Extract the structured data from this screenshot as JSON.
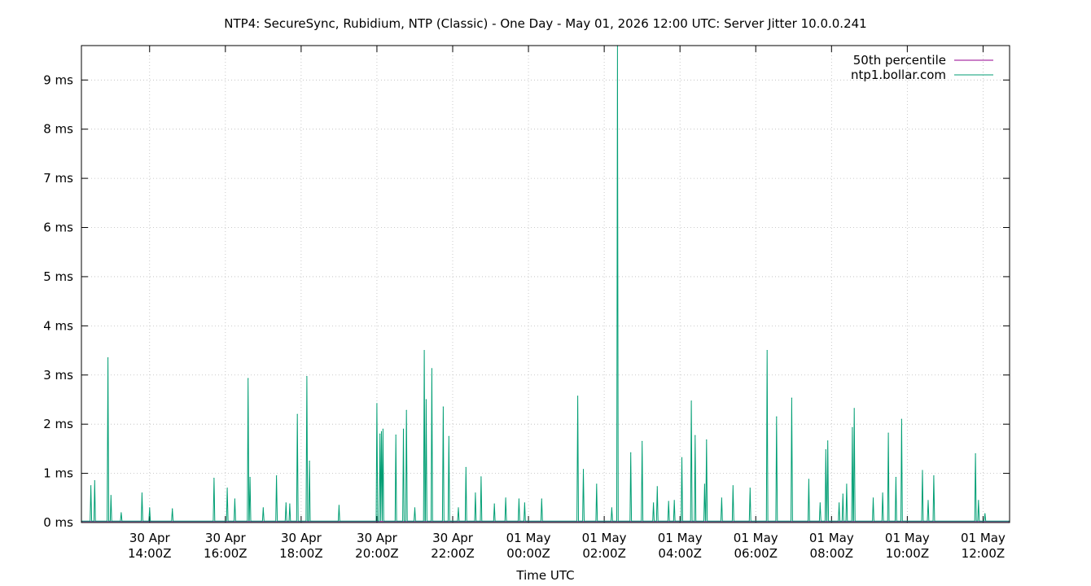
{
  "chart_data": {
    "type": "line",
    "title": "NTP4: SecureSync, Rubidium, NTP (Classic) - One Day - May 01, 2026 12:00 UTC: Server Jitter 10.0.0.241",
    "xlabel": "Time UTC",
    "ylabel": "",
    "x_unit": "hours since 30 Apr 12:00Z",
    "xlim": [
      0,
      24.5
    ],
    "ylim": [
      0,
      9.7
    ],
    "y_tick_values": [
      0,
      1,
      2,
      3,
      4,
      5,
      6,
      7,
      8,
      9
    ],
    "y_tick_labels": [
      "0 ms",
      "1 ms",
      "2 ms",
      "3 ms",
      "4 ms",
      "5 ms",
      "6 ms",
      "7 ms",
      "8 ms",
      "9 ms"
    ],
    "x_ticks": [
      {
        "x": 1.8,
        "line1": "30 Apr",
        "line2": "14:00Z"
      },
      {
        "x": 3.8,
        "line1": "30 Apr",
        "line2": "16:00Z"
      },
      {
        "x": 5.8,
        "line1": "30 Apr",
        "line2": "18:00Z"
      },
      {
        "x": 7.8,
        "line1": "30 Apr",
        "line2": "20:00Z"
      },
      {
        "x": 9.8,
        "line1": "30 Apr",
        "line2": "22:00Z"
      },
      {
        "x": 11.8,
        "line1": "01 May",
        "line2": "00:00Z"
      },
      {
        "x": 13.8,
        "line1": "01 May",
        "line2": "02:00Z"
      },
      {
        "x": 15.8,
        "line1": "01 May",
        "line2": "04:00Z"
      },
      {
        "x": 17.8,
        "line1": "01 May",
        "line2": "06:00Z"
      },
      {
        "x": 19.8,
        "line1": "01 May",
        "line2": "08:00Z"
      },
      {
        "x": 21.8,
        "line1": "01 May",
        "line2": "10:00Z"
      },
      {
        "x": 23.8,
        "line1": "01 May",
        "line2": "12:00Z"
      }
    ],
    "grid": true,
    "legend_position": "top-right",
    "series": [
      {
        "name": "50th percentile",
        "color": "#94008f",
        "values": [
          [
            0,
            0.02
          ],
          [
            24.5,
            0.02
          ]
        ]
      },
      {
        "name": "ntp1.bollar.com",
        "color": "#009e73",
        "baseline": 0.03,
        "spikes": [
          [
            0.25,
            0.75
          ],
          [
            0.35,
            0.85
          ],
          [
            0.7,
            3.35
          ],
          [
            0.78,
            0.55
          ],
          [
            1.05,
            0.2
          ],
          [
            1.6,
            0.6
          ],
          [
            1.8,
            0.3
          ],
          [
            2.4,
            0.28
          ],
          [
            3.5,
            0.9
          ],
          [
            3.85,
            0.7
          ],
          [
            4.05,
            0.48
          ],
          [
            4.4,
            2.93
          ],
          [
            4.45,
            0.92
          ],
          [
            4.8,
            0.3
          ],
          [
            5.15,
            0.95
          ],
          [
            5.4,
            0.4
          ],
          [
            5.5,
            0.38
          ],
          [
            5.7,
            2.2
          ],
          [
            5.95,
            2.97
          ],
          [
            6.02,
            1.25
          ],
          [
            6.8,
            0.35
          ],
          [
            7.8,
            2.42
          ],
          [
            7.88,
            1.8
          ],
          [
            7.92,
            1.85
          ],
          [
            7.96,
            1.9
          ],
          [
            8.3,
            1.78
          ],
          [
            8.5,
            1.9
          ],
          [
            8.58,
            2.28
          ],
          [
            8.8,
            0.3
          ],
          [
            9.05,
            3.5
          ],
          [
            9.1,
            2.5
          ],
          [
            9.25,
            3.13
          ],
          [
            9.55,
            2.35
          ],
          [
            9.7,
            1.75
          ],
          [
            9.95,
            0.3
          ],
          [
            10.15,
            1.12
          ],
          [
            10.4,
            0.6
          ],
          [
            10.55,
            0.93
          ],
          [
            10.9,
            0.38
          ],
          [
            11.2,
            0.5
          ],
          [
            11.55,
            0.48
          ],
          [
            11.7,
            0.4
          ],
          [
            12.15,
            0.48
          ],
          [
            13.1,
            2.57
          ],
          [
            13.25,
            1.08
          ],
          [
            13.6,
            0.78
          ],
          [
            14.0,
            0.3
          ],
          [
            14.15,
            9.7
          ],
          [
            14.5,
            1.42
          ],
          [
            14.8,
            1.65
          ],
          [
            15.1,
            0.4
          ],
          [
            15.2,
            0.73
          ],
          [
            15.5,
            0.43
          ],
          [
            15.65,
            0.45
          ],
          [
            15.85,
            1.32
          ],
          [
            16.1,
            2.47
          ],
          [
            16.2,
            1.77
          ],
          [
            16.45,
            0.78
          ],
          [
            16.5,
            1.68
          ],
          [
            16.9,
            0.5
          ],
          [
            17.2,
            0.75
          ],
          [
            17.65,
            0.7
          ],
          [
            18.1,
            3.5
          ],
          [
            18.35,
            2.15
          ],
          [
            18.75,
            2.53
          ],
          [
            19.2,
            0.88
          ],
          [
            19.5,
            0.4
          ],
          [
            19.65,
            1.48
          ],
          [
            19.7,
            1.66
          ],
          [
            20.0,
            0.4
          ],
          [
            20.1,
            0.58
          ],
          [
            20.2,
            0.78
          ],
          [
            20.35,
            1.93
          ],
          [
            20.4,
            2.32
          ],
          [
            20.9,
            0.5
          ],
          [
            21.15,
            0.6
          ],
          [
            21.3,
            1.82
          ],
          [
            21.5,
            0.92
          ],
          [
            21.65,
            2.1
          ],
          [
            22.2,
            1.06
          ],
          [
            22.35,
            0.45
          ],
          [
            22.5,
            0.95
          ],
          [
            23.6,
            1.4
          ],
          [
            23.68,
            0.45
          ],
          [
            23.85,
            0.18
          ]
        ]
      }
    ]
  }
}
